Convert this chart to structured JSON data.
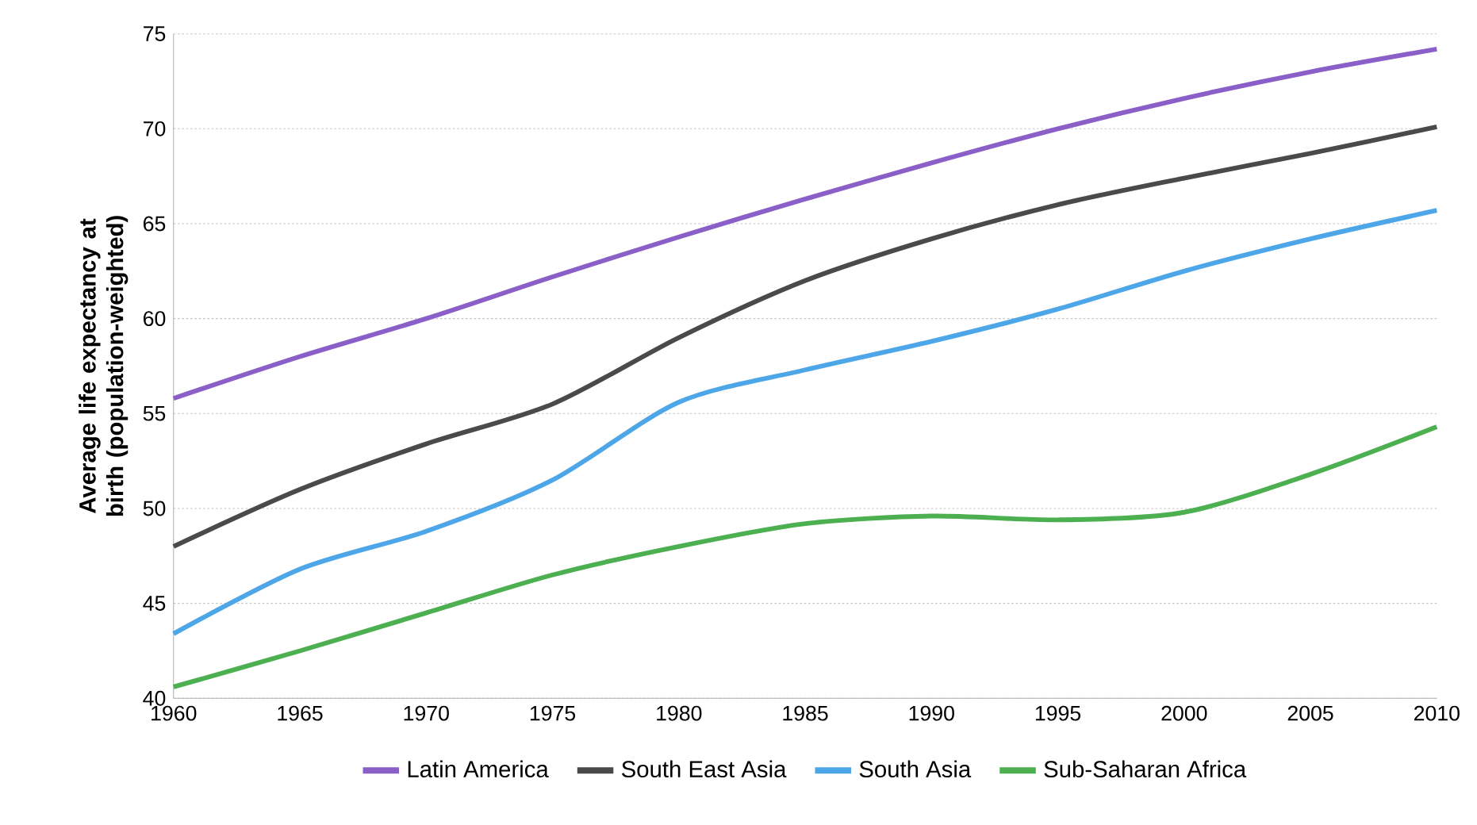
{
  "chart_data": {
    "type": "line",
    "ylabel": "Average life expectancy at birth (population-weighted)",
    "x": [
      1960,
      1965,
      1970,
      1975,
      1980,
      1985,
      1990,
      1995,
      2000,
      2005,
      2010
    ],
    "series": [
      {
        "name": "Latin America",
        "color": "#8a5fc8",
        "values": [
          55.8,
          58.0,
          60.0,
          62.2,
          64.3,
          66.3,
          68.2,
          70.0,
          71.6,
          73.0,
          74.2
        ]
      },
      {
        "name": "South East Asia",
        "color": "#4a4a4a",
        "values": [
          48.0,
          51.0,
          53.4,
          55.5,
          59.0,
          62.0,
          64.2,
          66.0,
          67.4,
          68.7,
          70.1
        ]
      },
      {
        "name": "South Asia",
        "color": "#4da6e8",
        "values": [
          43.4,
          46.8,
          48.8,
          51.5,
          55.6,
          57.3,
          58.8,
          60.5,
          62.5,
          64.2,
          65.7
        ]
      },
      {
        "name": "Sub-Saharan Africa",
        "color": "#4caf50",
        "values": [
          40.6,
          42.5,
          44.5,
          46.5,
          48.0,
          49.2,
          49.6,
          49.4,
          49.8,
          51.8,
          54.3
        ]
      }
    ],
    "xlim": [
      1960,
      2010
    ],
    "xticks": [
      1960,
      1965,
      1970,
      1975,
      1980,
      1985,
      1990,
      1995,
      2000,
      2005,
      2010
    ],
    "ylim": [
      40,
      75
    ],
    "yticks": [
      40,
      45,
      50,
      55,
      60,
      65,
      70,
      75
    ],
    "grid": "y",
    "legend": "bottom",
    "line_style": "solid"
  }
}
